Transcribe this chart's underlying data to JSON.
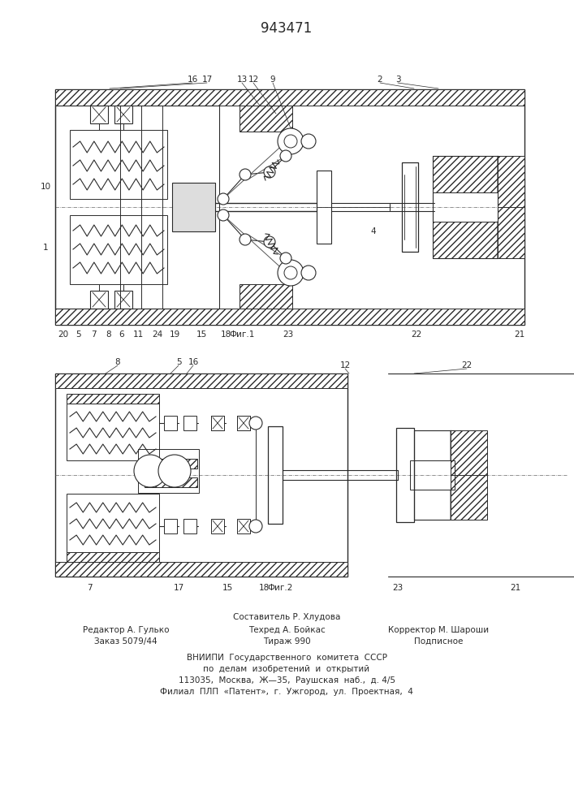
{
  "title": "943471",
  "fig_width": 7.07,
  "fig_height": 10.0,
  "bg_color": "#ffffff",
  "line_color": "#2a2a2a",
  "footer_line0": "Составитель Р. Хлудова",
  "footer_col1": [
    "Редактор А. Гулько",
    "Заказ 5079/44"
  ],
  "footer_col2": [
    "Техред А. Бойкас",
    "Тираж 990"
  ],
  "footer_col3": [
    "Корректор М. Шароши",
    "Подписное"
  ],
  "footer_main": [
    "ВНИИПИ  Государственного  комитета  СССР",
    "по  делам  изобретений  и  открытий",
    "113035,  Москва,  Ж—35,  Раушская  наб.,  д. 4/5",
    "Филиал  ПЛП  «Патент»,  г.  Ужгород,  ул.  Проектная,  4"
  ]
}
